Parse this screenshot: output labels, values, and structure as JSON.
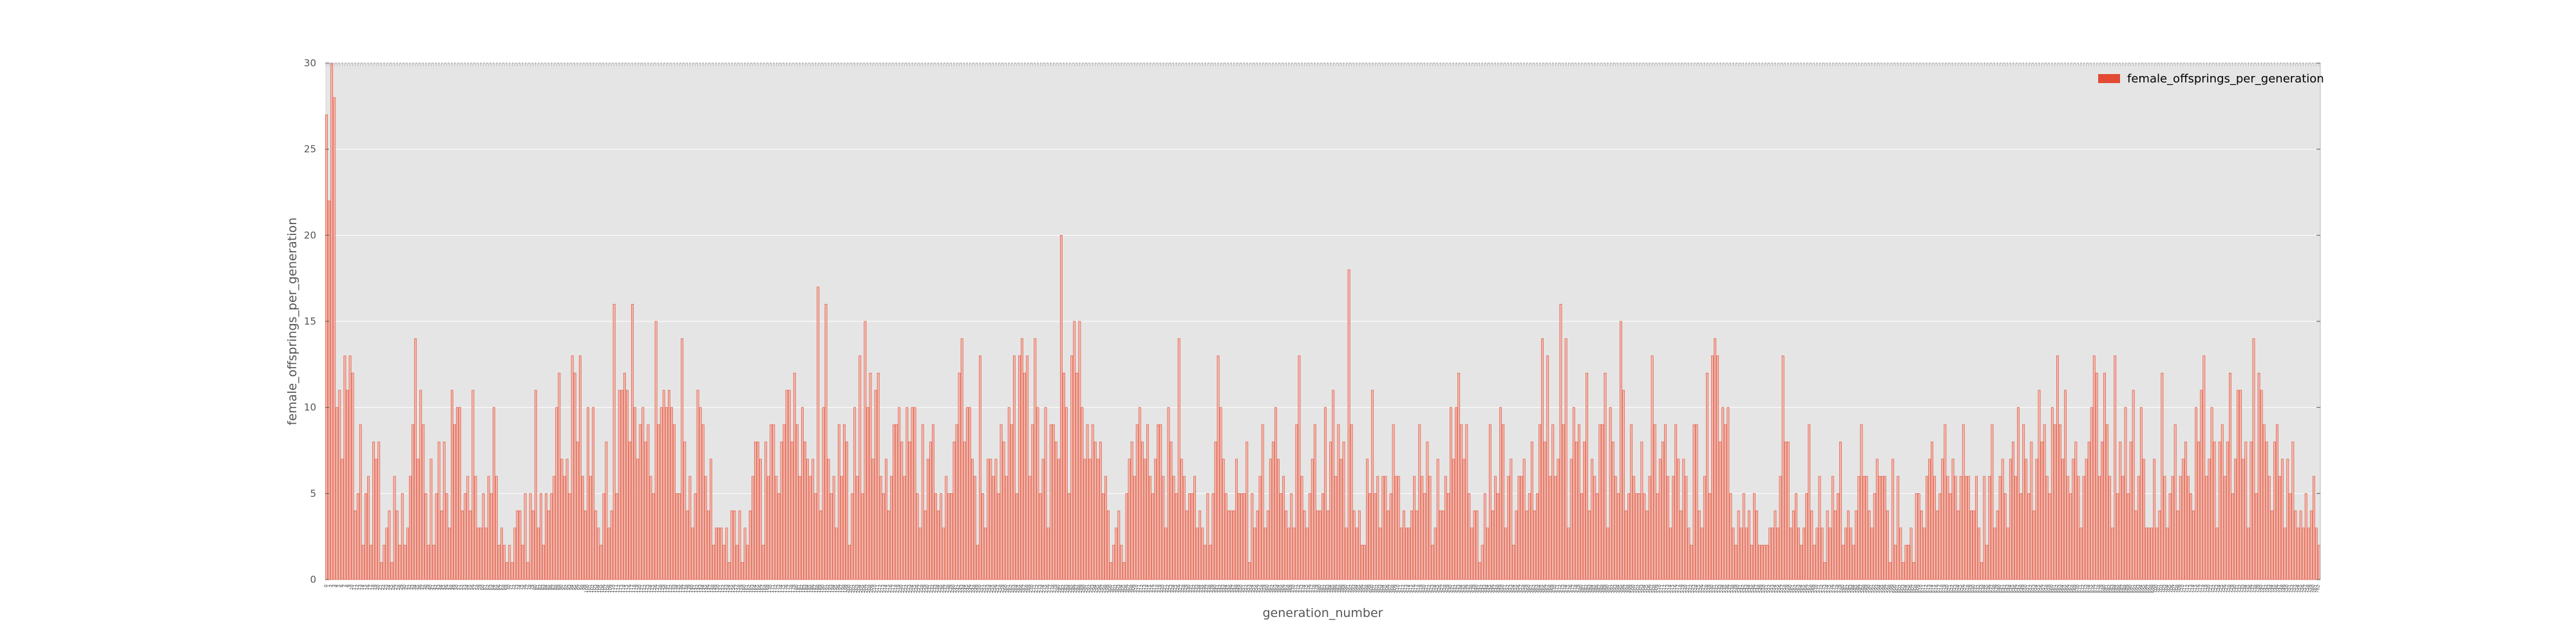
{
  "chart_data": {
    "type": "bar",
    "title": "",
    "xlabel": "generation_number",
    "ylabel": "female_offsprings_per_generation",
    "ylim": [
      0,
      30
    ],
    "yticks": [
      0,
      5,
      10,
      15,
      20,
      25,
      30
    ],
    "grid": true,
    "legend": {
      "placement": "top-right",
      "entries": [
        "female_offsprings_per_generation"
      ]
    },
    "series": [
      {
        "name": "female_offsprings_per_generation",
        "color": "#e24a33",
        "values": [
          27,
          22,
          30,
          28,
          10,
          11,
          7,
          13,
          11,
          13,
          12,
          4,
          5,
          9,
          2,
          5,
          6,
          2,
          8,
          7,
          8,
          1,
          2,
          3,
          4,
          1,
          6,
          4,
          2,
          5,
          2,
          3,
          6,
          9,
          14,
          7,
          11,
          9,
          5,
          2,
          7,
          2,
          5,
          8,
          4,
          8,
          5,
          3,
          11,
          9,
          10,
          10,
          4,
          5,
          6,
          4,
          11,
          6,
          3,
          3,
          5,
          3,
          6,
          5,
          10,
          6,
          2,
          3,
          2,
          1,
          2,
          1,
          3,
          4,
          4,
          2,
          5,
          1,
          5,
          4,
          11,
          3,
          5,
          2,
          5,
          4,
          5,
          6,
          10,
          12,
          7,
          6,
          7,
          5,
          13,
          12,
          8,
          13,
          6,
          4,
          10,
          6,
          10,
          4,
          3,
          2,
          5,
          8,
          3,
          4,
          16,
          5,
          11,
          11,
          12,
          11,
          8,
          16,
          10,
          7,
          9,
          10,
          8,
          9,
          6,
          5,
          15,
          9,
          10,
          11,
          10,
          11,
          10,
          9,
          5,
          5,
          14,
          8,
          4,
          6,
          3,
          5,
          11,
          10,
          9,
          6,
          4,
          7,
          2,
          3,
          3,
          3,
          2,
          3,
          1,
          4,
          4,
          2,
          4,
          1,
          3,
          2,
          4,
          6,
          8,
          8,
          7,
          2,
          8,
          6,
          9,
          9,
          6,
          5,
          8,
          9,
          11,
          11,
          8,
          12,
          9,
          6,
          10,
          8,
          7,
          6,
          7,
          5,
          17,
          4,
          10,
          16,
          7,
          5,
          6,
          3,
          9,
          6,
          9,
          8,
          2,
          5,
          10,
          6,
          13,
          5,
          15,
          10,
          12,
          7,
          11,
          12,
          6,
          5,
          7,
          4,
          6,
          9,
          9,
          10,
          8,
          6,
          10,
          8,
          10,
          10,
          5,
          3,
          9,
          4,
          7,
          8,
          9,
          5,
          4,
          5,
          3,
          6,
          5,
          5,
          8,
          9,
          12,
          14,
          8,
          10,
          10,
          7,
          6,
          2,
          13,
          5,
          3,
          7,
          7,
          6,
          7,
          5,
          9,
          8,
          6,
          10,
          9,
          13,
          5,
          13,
          14,
          12,
          13,
          6,
          9,
          14,
          10,
          5,
          7,
          10,
          3,
          9,
          9,
          8,
          7,
          20,
          12,
          10,
          5,
          13,
          15,
          12,
          15,
          10,
          7,
          9,
          7,
          9,
          8,
          7,
          8,
          5,
          6,
          4,
          1,
          2,
          3,
          4,
          2,
          1,
          5,
          7,
          8,
          6,
          9,
          10,
          8,
          7,
          9,
          6,
          5,
          7,
          9,
          9,
          6,
          3,
          10,
          8,
          6,
          5,
          14,
          7,
          6,
          4,
          5,
          5,
          6,
          3,
          4,
          3,
          2,
          5,
          2,
          5,
          8,
          13,
          10,
          7,
          5,
          4,
          4,
          4,
          7,
          5,
          5,
          5,
          8,
          1,
          5,
          3,
          4,
          6,
          9,
          3,
          4,
          7,
          8,
          10,
          7,
          5,
          6,
          4,
          3,
          5,
          3,
          9,
          13,
          6,
          4,
          3,
          5,
          7,
          9,
          4,
          4,
          5,
          10,
          4,
          8,
          11,
          6,
          9,
          7,
          8,
          3,
          18,
          9,
          4,
          3,
          4,
          2,
          2,
          7,
          5,
          11,
          5,
          6,
          3,
          6,
          6,
          4,
          5,
          9,
          6,
          6,
          3,
          4,
          3,
          3,
          4,
          6,
          4,
          9,
          6,
          5,
          8,
          6,
          2,
          3,
          7,
          4,
          4,
          6,
          5,
          10,
          7,
          10,
          12,
          9,
          7,
          9,
          5,
          3,
          4,
          4,
          1,
          2,
          5,
          3,
          9,
          4,
          6,
          5,
          10,
          9,
          3,
          6,
          7,
          2,
          4,
          6,
          6,
          7,
          4,
          5,
          8,
          4,
          5,
          9,
          14,
          8,
          13,
          6,
          9,
          6,
          7,
          16,
          9,
          14,
          3,
          7,
          10,
          8,
          9,
          5,
          8,
          12,
          4,
          7,
          6,
          5,
          9,
          9,
          12,
          3,
          10,
          8,
          6,
          5,
          15,
          11,
          4,
          5,
          9,
          6,
          5,
          5,
          8,
          5,
          4,
          6,
          13,
          9,
          5,
          7,
          8,
          9,
          6,
          3,
          6,
          9,
          7,
          4,
          7,
          6,
          3,
          2,
          9,
          9,
          4,
          3,
          6,
          12,
          5,
          13,
          14,
          13,
          8,
          10,
          9,
          10,
          5,
          3,
          2,
          4,
          3,
          5,
          3,
          4,
          2,
          5,
          4,
          2,
          2,
          2,
          2,
          3,
          3,
          4,
          3,
          6,
          13,
          8,
          8,
          3,
          4,
          5,
          3,
          2,
          3,
          5,
          9,
          4,
          2,
          3,
          6,
          3,
          1,
          4,
          3,
          6,
          4,
          5,
          8,
          2,
          3,
          4,
          3,
          2,
          4,
          6,
          9,
          6,
          6,
          4,
          3,
          5,
          7,
          6,
          6,
          6,
          4,
          1,
          7,
          2,
          6,
          3,
          1,
          2,
          2,
          3,
          1,
          5,
          5,
          4,
          3,
          6,
          7,
          8,
          6,
          4,
          5,
          7,
          9,
          6,
          5,
          7,
          6,
          4,
          6,
          9,
          6,
          6,
          4,
          4,
          6,
          3,
          1,
          6,
          2,
          6,
          9,
          3,
          4,
          6,
          7,
          5,
          3,
          7,
          8,
          6,
          10,
          5,
          9,
          7,
          5,
          8,
          4,
          7,
          11,
          8,
          9,
          6,
          5,
          10,
          9,
          13,
          9,
          7,
          11,
          6,
          5,
          7,
          8,
          6,
          3,
          6,
          7,
          8,
          10,
          13,
          12,
          6,
          8,
          12,
          9,
          6,
          3,
          13,
          5,
          8,
          6,
          10,
          5,
          8,
          11,
          4,
          6,
          10,
          7,
          3,
          3,
          3,
          7,
          3,
          4,
          12,
          6,
          3,
          5,
          6,
          9,
          4,
          6,
          7,
          8,
          6,
          5,
          4,
          10,
          8,
          11,
          13,
          6,
          7,
          10,
          8,
          3,
          8,
          9,
          6,
          8,
          12,
          5,
          7,
          11,
          11,
          7,
          8,
          3,
          8,
          14,
          5,
          12,
          11,
          9,
          8,
          6,
          4,
          8,
          9,
          6,
          7,
          3,
          7,
          5,
          8,
          4,
          3,
          4,
          3,
          5,
          3,
          4,
          6,
          3,
          2
        ]
      }
    ]
  }
}
